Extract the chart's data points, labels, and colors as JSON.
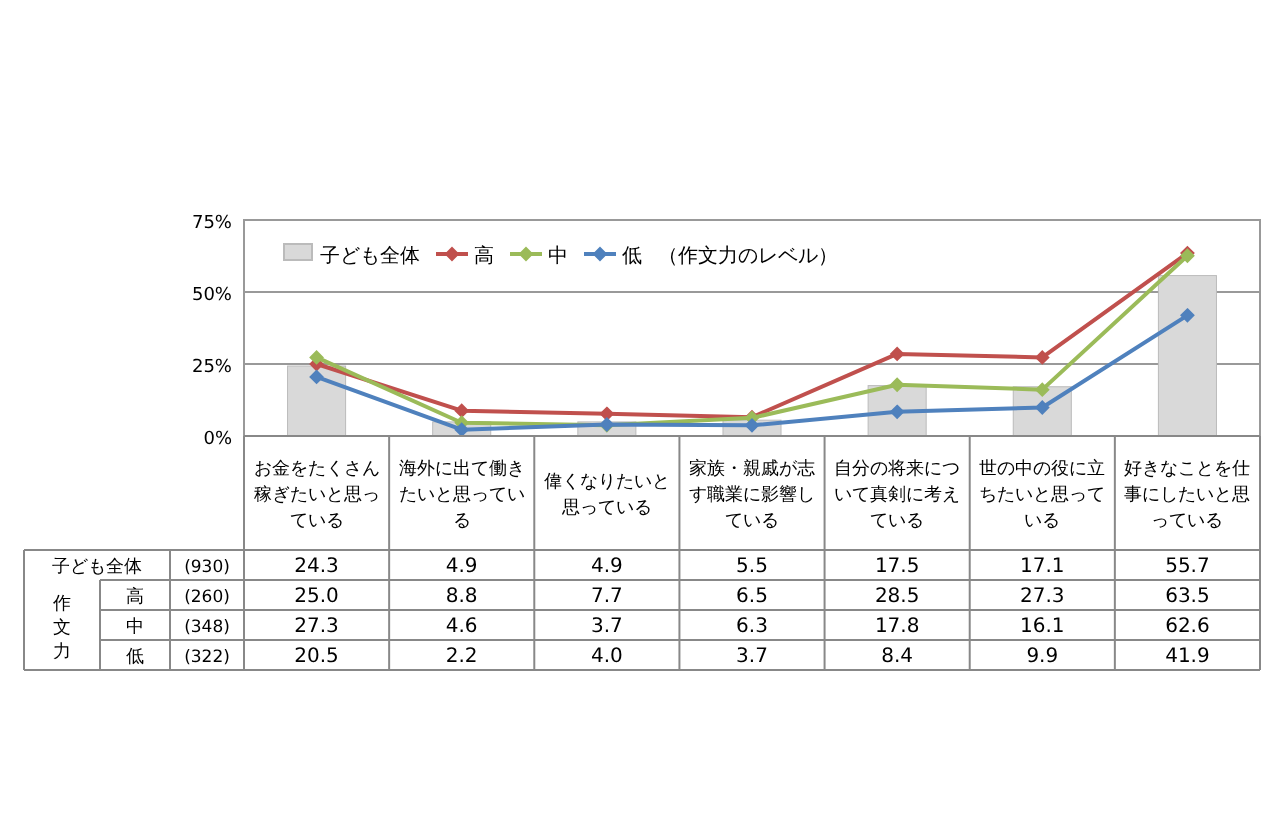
{
  "chart_data": {
    "type": "bar",
    "categories": [
      "お金をたくさん稼ぎたいと思っている",
      "海外に出て働きたいと思っている",
      "偉くなりたいと思っている",
      "家族・親戚が志す職業に影響している",
      "自分の将来について真剣に考えている",
      "世の中の役に立ちたいと思っている",
      "好きなことを仕事にしたいと思っている"
    ],
    "series": [
      {
        "name": "子ども全体",
        "color": "#d9d9d9",
        "values": [
          24.3,
          4.9,
          4.9,
          5.5,
          17.5,
          17.1,
          55.7
        ],
        "value_labels": [
          "24.3",
          "4.9",
          "4.9",
          "5.5",
          "17.5",
          "17.1",
          "55.7"
        ]
      },
      {
        "name": "高",
        "type": "line",
        "color": "#c0504d",
        "values": [
          25.0,
          8.8,
          7.7,
          6.5,
          28.5,
          27.3,
          63.5
        ],
        "value_labels": [
          "25.0",
          "8.8",
          "7.7",
          "6.5",
          "28.5",
          "27.3",
          "63.5"
        ]
      },
      {
        "name": "中",
        "type": "line",
        "color": "#9bbb59",
        "values": [
          27.3,
          4.6,
          3.7,
          6.3,
          17.8,
          16.1,
          62.6
        ],
        "value_labels": [
          "27.3",
          "4.6",
          "3.7",
          "6.3",
          "17.8",
          "16.1",
          "62.6"
        ]
      },
      {
        "name": "低",
        "type": "line",
        "color": "#4f81bd",
        "values": [
          20.5,
          2.2,
          4.0,
          3.7,
          8.4,
          9.9,
          41.9
        ],
        "value_labels": [
          "20.5",
          "2.2",
          "4.0",
          "3.7",
          "8.4",
          "9.9",
          "41.9"
        ]
      }
    ],
    "legend_title": "（作文力のレベル）",
    "annotations": [
      "(930)",
      "(260)",
      "(348)",
      "(322)",
      "作文力"
    ],
    "ylim": [
      0,
      75
    ],
    "yticks": [
      {
        "value": 0,
        "label": "0%"
      },
      {
        "value": 25,
        "label": "25%"
      },
      {
        "value": 50,
        "label": "50%"
      },
      {
        "value": 75,
        "label": "75%"
      }
    ],
    "grid": "y",
    "legend": "top left",
    "marker": "diamond"
  }
}
